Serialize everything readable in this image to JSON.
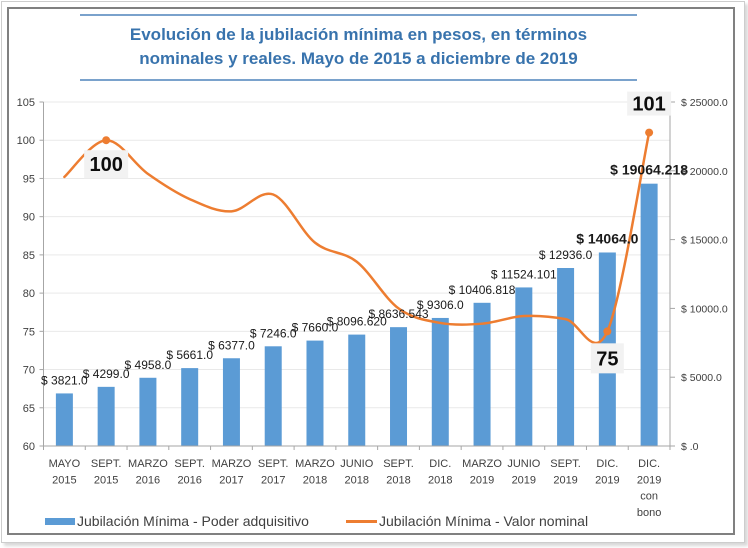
{
  "chart_data": {
    "type": "bar",
    "title": "Evolución de la jubilación mínima en pesos, en términos nominales y reales. Mayo de 2015 a diciembre de 2019",
    "title_lines": [
      "Evolución de la jubilación mínima en pesos, en términos",
      "nominales y reales. Mayo de 2015 a diciembre de 2019"
    ],
    "xlabel": "",
    "ylabel": "",
    "categories": [
      "MAYO 2015",
      "SEPT. 2015",
      "MARZO 2016",
      "SEPT. 2016",
      "MARZO 2017",
      "SEPT. 2017",
      "MARZO 2018",
      "JUNIO 2018",
      "SEPT. 2018",
      "DIC. 2018",
      "MARZO 2019",
      "JUNIO 2019",
      "SEPT. 2019",
      "DIC. 2019",
      "DIC. 2019 con bono"
    ],
    "category_lines": [
      [
        "MAYO",
        "2015"
      ],
      [
        "SEPT.",
        "2015"
      ],
      [
        "MARZO",
        "2016"
      ],
      [
        "SEPT.",
        "2016"
      ],
      [
        "MARZO",
        "2017"
      ],
      [
        "SEPT.",
        "2017"
      ],
      [
        "MARZO",
        "2018"
      ],
      [
        "JUNIO",
        "2018"
      ],
      [
        "SEPT.",
        "2018"
      ],
      [
        "DIC.",
        "2018"
      ],
      [
        "MARZO",
        "2019"
      ],
      [
        "JUNIO",
        "2019"
      ],
      [
        "SEPT.",
        "2019"
      ],
      [
        "DIC.",
        "2019"
      ],
      [
        "DIC.",
        "2019",
        "con",
        "bono"
      ]
    ],
    "series": [
      {
        "name": "Jubilación Mínima - Poder adquisitivo",
        "type": "bar",
        "axis": "right",
        "color": "#5b9bd5",
        "values": [
          3821.0,
          4299.0,
          4958.0,
          5661.0,
          6377.0,
          7246.0,
          7660.0,
          8096.62,
          8636.543,
          9306.0,
          10406.818,
          11524.101,
          12936.0,
          14064.0,
          19064.218
        ],
        "labels": [
          "$ 3821.0",
          "$ 4299.0",
          "$ 4958.0",
          "$ 5661.0",
          "$ 6377.0",
          "$ 7246.0",
          "$ 7660.0",
          "$ 8096.620",
          "$ 8636.543",
          "$ 9306.0",
          "$ 10406.818",
          "$ 11524.101",
          "$ 12936.0",
          "$ 14064.0",
          "$ 19064.218"
        ],
        "bold_label_indices": [
          13,
          14
        ]
      },
      {
        "name": "Jubilación Mínima - Valor nominal",
        "type": "line",
        "axis": "left",
        "smooth": true,
        "color": "#ed7d31",
        "values": [
          95.2,
          100,
          95.6,
          92.3,
          90.7,
          92.9,
          86.6,
          84.1,
          78.0,
          76.1,
          76.0,
          77.0,
          76.6,
          75,
          101
        ],
        "annotations": [
          {
            "index": 1,
            "label": "100"
          },
          {
            "index": 13,
            "label": "75"
          },
          {
            "index": 14,
            "label": "101"
          }
        ]
      }
    ],
    "y_left": {
      "range": [
        60,
        105
      ],
      "ticks": [
        60,
        65,
        70,
        75,
        80,
        85,
        90,
        95,
        100,
        105
      ],
      "tick_labels": [
        "60",
        "65",
        "70",
        "75",
        "80",
        "85",
        "90",
        "95",
        "100",
        "105"
      ]
    },
    "y_right": {
      "range": [
        0,
        25000
      ],
      "ticks": [
        0,
        5000,
        10000,
        15000,
        20000,
        25000
      ],
      "tick_labels": [
        "$ .0",
        "$ 5000.0",
        "$ 10000.0",
        "$ 15000.0",
        "$ 20000.0",
        "$ 25000.0"
      ]
    },
    "grid": true,
    "legend": {
      "position": "bottom",
      "entries": [
        {
          "label": "Jubilación Mínima - Poder adquisitivo",
          "marker": "bar",
          "color": "#5b9bd5"
        },
        {
          "label": "Jubilación Mínima - Valor nominal",
          "marker": "line",
          "color": "#ed7d31"
        }
      ]
    }
  }
}
